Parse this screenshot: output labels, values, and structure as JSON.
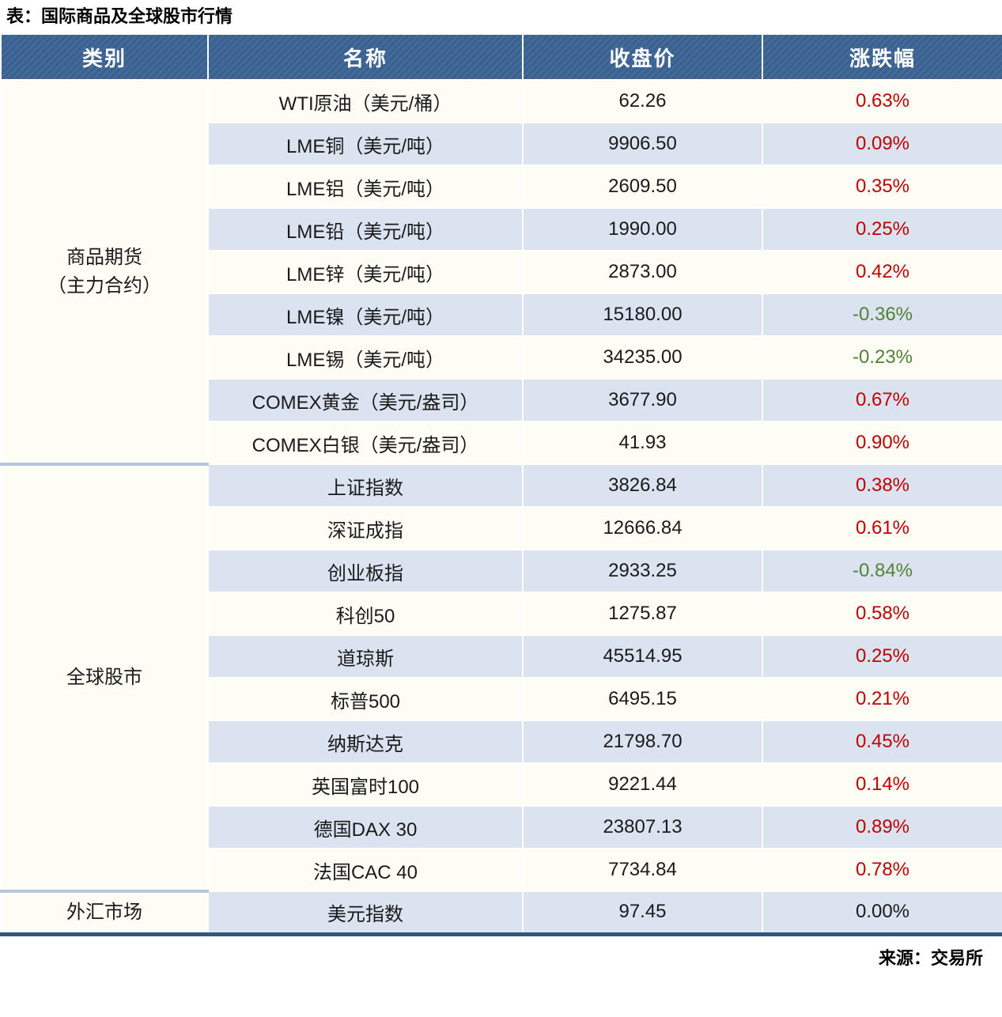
{
  "title": "表：国际商品及全球股市行情",
  "source": "来源：交易所",
  "colors": {
    "header_bg": "#3A6292",
    "stripe_row": "#DAE3EF",
    "plain_row": "#FDFDF5",
    "positive_change": "#C00000",
    "negative_change": "#538135",
    "zero_change": "#1A1A1A",
    "group_divider": "#B7C7DB",
    "table_bottom_border": "#2F587E"
  },
  "table": {
    "columns": [
      "类别",
      "名称",
      "收盘价",
      "涨跌幅"
    ],
    "groups": [
      {
        "category_lines": [
          "商品期货",
          "（主力合约）"
        ],
        "rows": [
          {
            "name": "WTI原油（美元/桶）",
            "close": "62.26",
            "change": "0.63%"
          },
          {
            "name": "LME铜（美元/吨）",
            "close": "9906.50",
            "change": "0.09%"
          },
          {
            "name": "LME铝（美元/吨）",
            "close": "2609.50",
            "change": "0.35%"
          },
          {
            "name": "LME铅（美元/吨）",
            "close": "1990.00",
            "change": "0.25%"
          },
          {
            "name": "LME锌（美元/吨）",
            "close": "2873.00",
            "change": "0.42%"
          },
          {
            "name": "LME镍（美元/吨）",
            "close": "15180.00",
            "change": "-0.36%"
          },
          {
            "name": "LME锡（美元/吨）",
            "close": "34235.00",
            "change": "-0.23%"
          },
          {
            "name": "COMEX黄金（美元/盎司）",
            "close": "3677.90",
            "change": "0.67%"
          },
          {
            "name": "COMEX白银（美元/盎司）",
            "close": "41.93",
            "change": "0.90%"
          }
        ]
      },
      {
        "category_lines": [
          "全球股市"
        ],
        "rows": [
          {
            "name": "上证指数",
            "close": "3826.84",
            "change": "0.38%"
          },
          {
            "name": "深证成指",
            "close": "12666.84",
            "change": "0.61%"
          },
          {
            "name": "创业板指",
            "close": "2933.25",
            "change": "-0.84%"
          },
          {
            "name": "科创50",
            "close": "1275.87",
            "change": "0.58%"
          },
          {
            "name": "道琼斯",
            "close": "45514.95",
            "change": "0.25%"
          },
          {
            "name": "标普500",
            "close": "6495.15",
            "change": "0.21%"
          },
          {
            "name": "纳斯达克",
            "close": "21798.70",
            "change": "0.45%"
          },
          {
            "name": "英国富时100",
            "close": "9221.44",
            "change": "0.14%"
          },
          {
            "name": "德国DAX 30",
            "close": "23807.13",
            "change": "0.89%"
          },
          {
            "name": "法国CAC 40",
            "close": "7734.84",
            "change": "0.78%"
          }
        ]
      },
      {
        "category_lines": [
          "外汇市场"
        ],
        "rows": [
          {
            "name": "美元指数",
            "close": "97.45",
            "change": "0.00%"
          }
        ]
      }
    ]
  }
}
